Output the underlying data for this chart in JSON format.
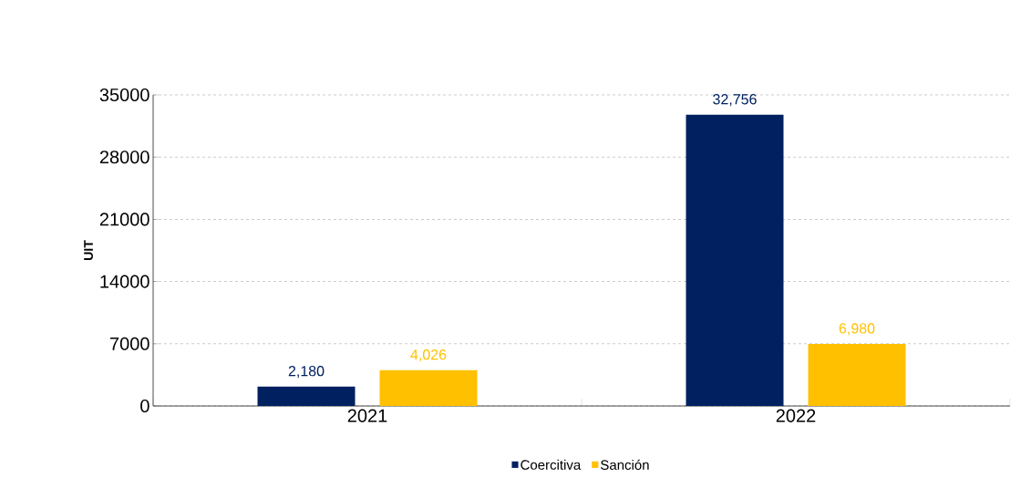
{
  "chart_data": {
    "type": "bar",
    "ylabel": "UIT",
    "categories": [
      "2021",
      "2022"
    ],
    "series": [
      {
        "name": "Coercitiva",
        "color": "#002060",
        "values": [
          2180,
          32756
        ],
        "value_labels": [
          "2,180",
          "32,756"
        ]
      },
      {
        "name": "Sanción",
        "color": "#FFC000",
        "values": [
          4026,
          6980
        ],
        "value_labels": [
          "4,026",
          "6,980"
        ]
      }
    ],
    "ylim": [
      0,
      35000
    ],
    "yticks": [
      0,
      7000,
      14000,
      21000,
      28000,
      35000
    ],
    "grid": "y",
    "legend": "bottom"
  }
}
